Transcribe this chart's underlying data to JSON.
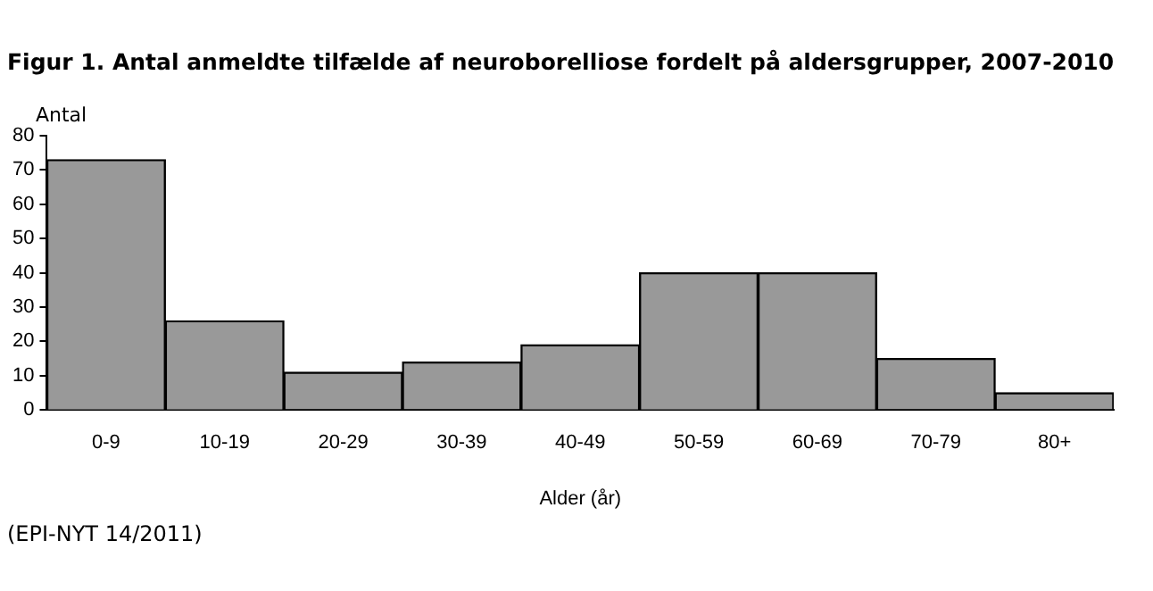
{
  "chart_data": {
    "type": "bar",
    "title": "Figur 1. Antal anmeldte tilfælde af neuroborelliose  fordelt på aldersgrupper, 2007-2010",
    "ylabel": "Antal",
    "xlabel": "Alder (år)",
    "categories": [
      "0-9",
      "10-19",
      "20-29",
      "30-39",
      "40-49",
      "50-59",
      "60-69",
      "70-79",
      "80+"
    ],
    "values": [
      73,
      26,
      11,
      14,
      19,
      40,
      40,
      15,
      5
    ],
    "color": "#999999",
    "ylim": [
      0,
      80
    ],
    "yticks": [
      0,
      10,
      20,
      30,
      40,
      50,
      60,
      70,
      80
    ],
    "grid": false,
    "legend": false,
    "annotations": [
      "(EPI-NYT 14/2011)"
    ]
  }
}
